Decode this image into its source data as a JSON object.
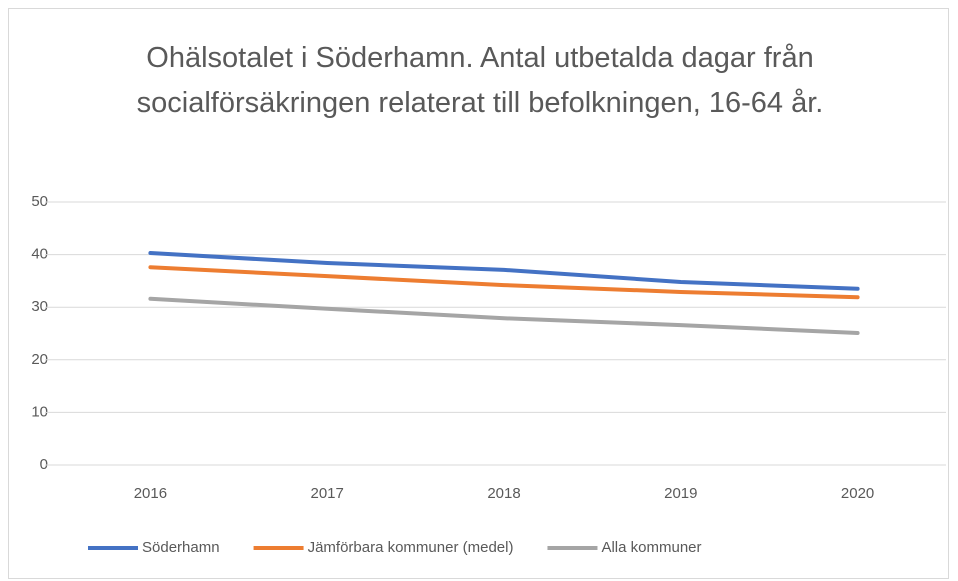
{
  "chart_data": {
    "type": "line",
    "title": "Ohälsotalet i Söderhamn. Antal utbetalda dagar från socialförsäkringen relaterat till befolkningen, 16-64 år.",
    "categories": [
      "2016",
      "2017",
      "2018",
      "2019",
      "2020"
    ],
    "series": [
      {
        "name": "Söderhamn",
        "color": "#4472c4",
        "values": [
          40.3,
          38.4,
          37.1,
          34.8,
          33.5
        ]
      },
      {
        "name": "Jämförbara kommuner (medel)",
        "color": "#ed7d31",
        "values": [
          37.6,
          35.9,
          34.2,
          32.9,
          31.9
        ]
      },
      {
        "name": "Alla kommuner",
        "color": "#a5a5a5",
        "values": [
          31.6,
          29.7,
          27.9,
          26.6,
          25.1
        ]
      }
    ],
    "ylim": [
      0,
      50
    ],
    "yticks": [
      0,
      10,
      20,
      30,
      40,
      50
    ],
    "grid": true,
    "legend": "bottom"
  }
}
